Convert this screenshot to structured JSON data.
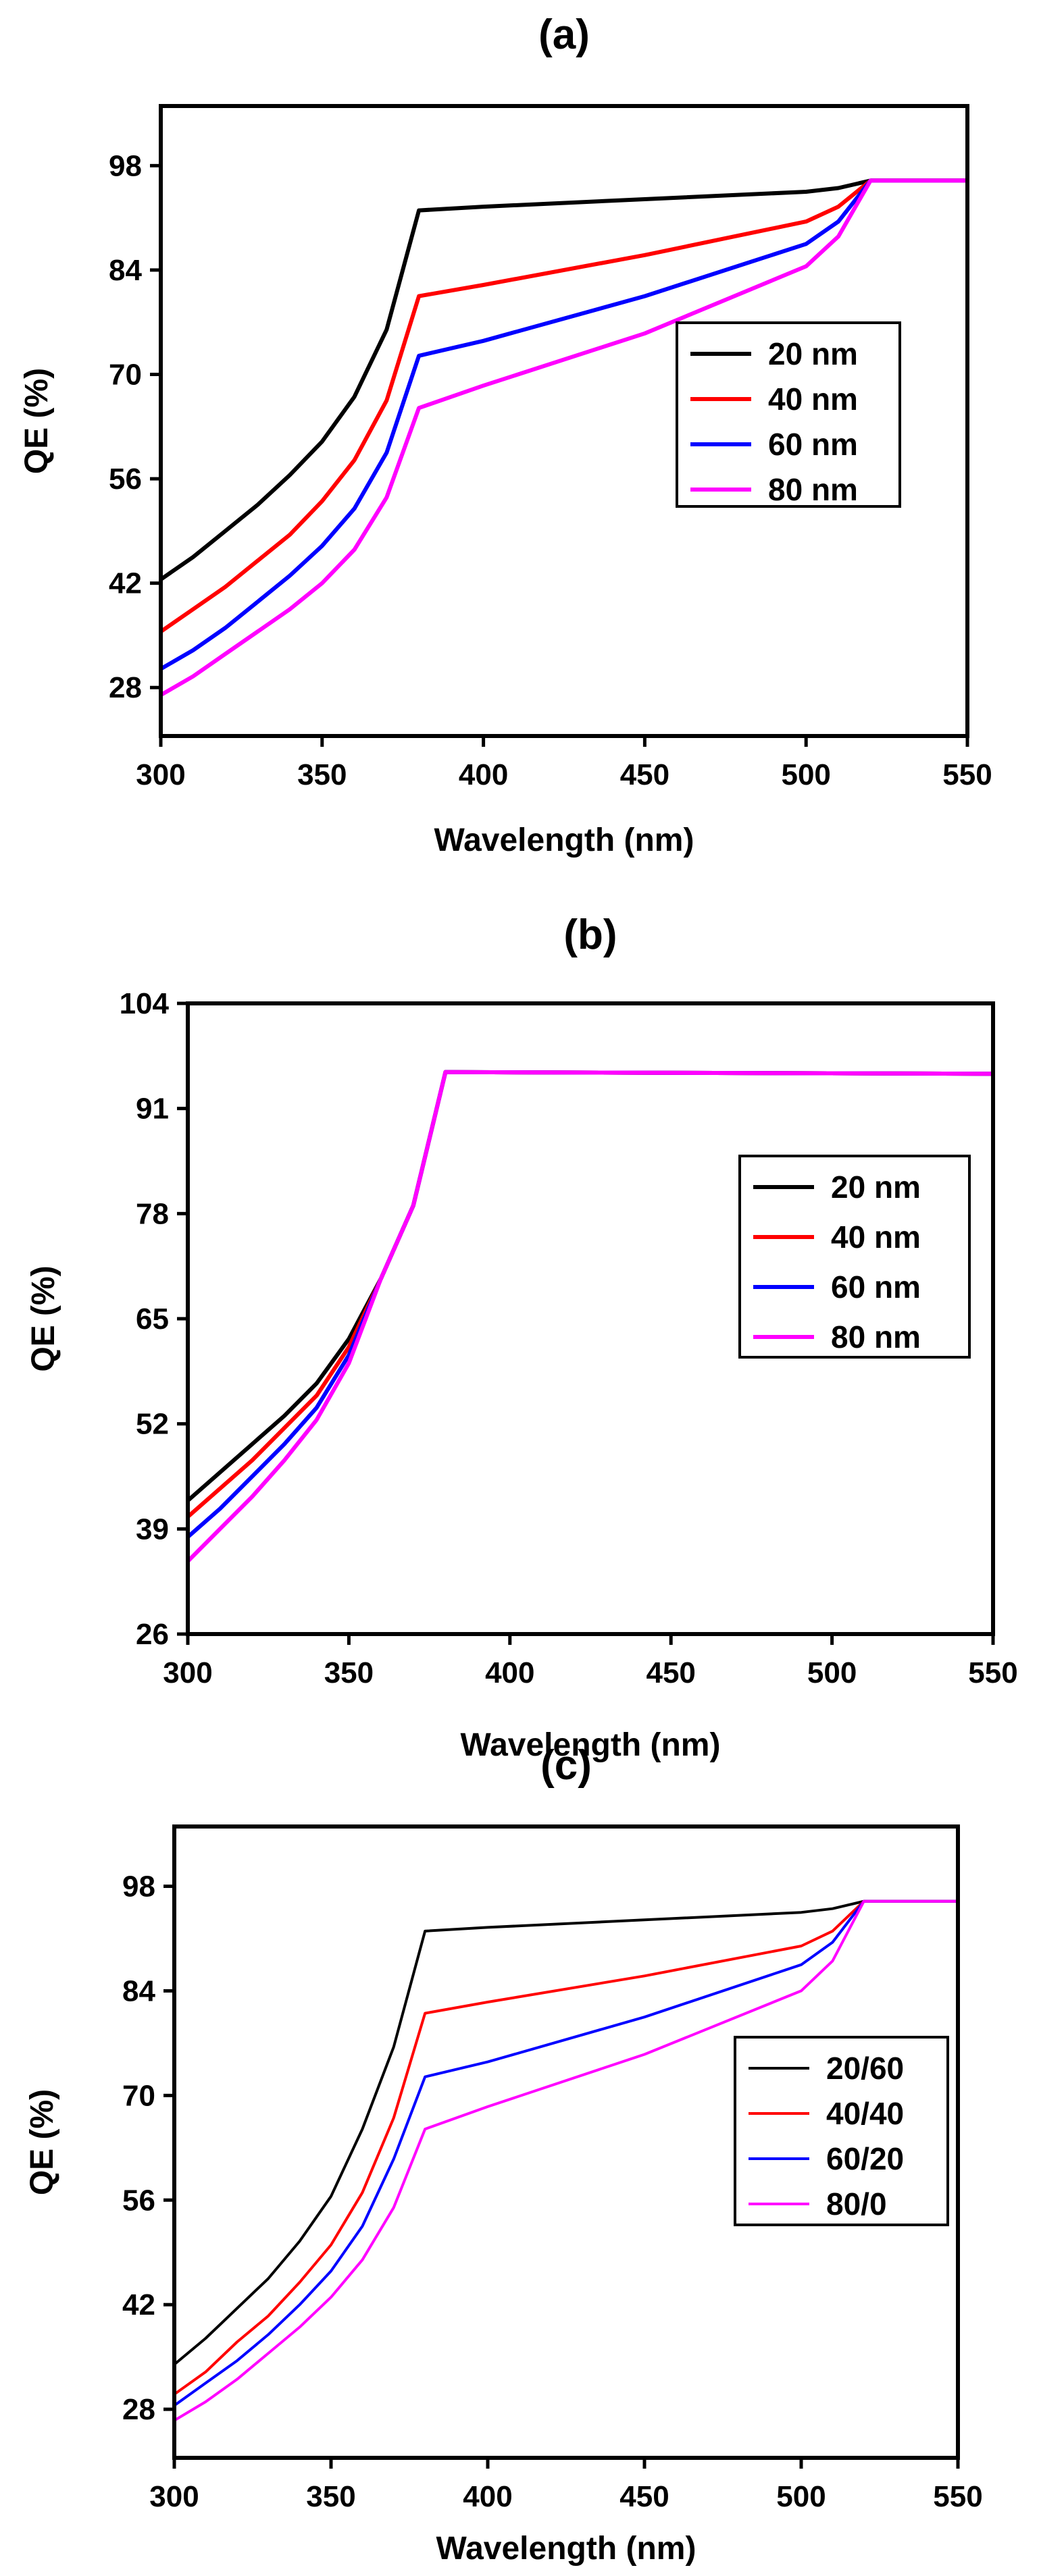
{
  "chart_data": [
    {
      "panel": "a",
      "type": "line",
      "title": "(a)",
      "xlabel": "Wavelength (nm)",
      "ylabel": "QE (%)",
      "xlim": [
        300,
        550
      ],
      "ylim": [
        21.5,
        106
      ],
      "xticks": [
        300,
        350,
        400,
        450,
        500,
        550
      ],
      "xtick_labels": [
        "300",
        "350",
        "400",
        "450",
        "500",
        "550"
      ],
      "yticks": [
        28,
        42,
        56,
        70,
        84,
        98
      ],
      "ytick_labels": [
        "28",
        "42",
        "56",
        "70",
        "84",
        "98"
      ],
      "grid": false,
      "legend_position": "center-right",
      "series": [
        {
          "name": "20 nm",
          "color": "#000000",
          "x": [
            300,
            310,
            320,
            330,
            340,
            350,
            360,
            370,
            380,
            400,
            450,
            500,
            510,
            520,
            550
          ],
          "y": [
            42.5,
            45.5,
            49,
            52.5,
            56.5,
            61,
            67,
            76,
            92,
            92.5,
            93.5,
            94.5,
            95,
            96,
            96
          ]
        },
        {
          "name": "40 nm",
          "color": "#ff0000",
          "x": [
            300,
            310,
            320,
            330,
            340,
            350,
            360,
            370,
            380,
            400,
            450,
            500,
            510,
            520,
            550
          ],
          "y": [
            35.5,
            38.5,
            41.5,
            45,
            48.5,
            53,
            58.5,
            66.5,
            80.5,
            82,
            86,
            90.5,
            92.5,
            96,
            96
          ]
        },
        {
          "name": "60 nm",
          "color": "#0000ff",
          "x": [
            300,
            310,
            320,
            330,
            340,
            350,
            360,
            370,
            380,
            400,
            450,
            500,
            510,
            520,
            550
          ],
          "y": [
            30.5,
            33,
            36,
            39.5,
            43,
            47,
            52,
            59.5,
            72.5,
            74.5,
            80.5,
            87.5,
            90.5,
            96,
            96
          ]
        },
        {
          "name": "80 nm",
          "color": "#ff00ff",
          "x": [
            300,
            310,
            320,
            330,
            340,
            350,
            360,
            370,
            380,
            400,
            450,
            500,
            510,
            520,
            550
          ],
          "y": [
            27,
            29.5,
            32.5,
            35.5,
            38.5,
            42,
            46.5,
            53.5,
            65.5,
            68.5,
            75.5,
            84.5,
            88.5,
            96,
            96
          ]
        }
      ]
    },
    {
      "panel": "b",
      "type": "line",
      "title": "(b)",
      "xlabel": "Wavelength (nm)",
      "ylabel": "QE (%)",
      "xlim": [
        300,
        550
      ],
      "ylim": [
        26,
        104
      ],
      "xticks": [
        300,
        350,
        400,
        450,
        500,
        550
      ],
      "xtick_labels": [
        "300",
        "350",
        "400",
        "450",
        "500",
        "550"
      ],
      "yticks": [
        26,
        39,
        52,
        65,
        78,
        91,
        104
      ],
      "ytick_labels": [
        "26",
        "39",
        "52",
        "65",
        "78",
        "91",
        "104"
      ],
      "grid": false,
      "legend_position": "center-right",
      "series": [
        {
          "name": "20 nm",
          "color": "#000000",
          "x": [
            300,
            310,
            320,
            330,
            340,
            350,
            360,
            370,
            380,
            550
          ],
          "y": [
            42.5,
            46,
            49.5,
            53,
            57,
            62.5,
            70,
            79,
            95.5,
            95.3
          ]
        },
        {
          "name": "40 nm",
          "color": "#ff0000",
          "x": [
            300,
            310,
            320,
            330,
            340,
            350,
            360,
            370,
            380,
            550
          ],
          "y": [
            40.5,
            44,
            47.5,
            51.5,
            55.5,
            61.5,
            70,
            79,
            95.5,
            95.3
          ]
        },
        {
          "name": "60 nm",
          "color": "#0000ff",
          "x": [
            300,
            310,
            320,
            330,
            340,
            350,
            360,
            370,
            380,
            550
          ],
          "y": [
            38,
            41.5,
            45.5,
            49.5,
            54,
            60.5,
            70,
            79,
            95.5,
            95.3
          ]
        },
        {
          "name": "80 nm",
          "color": "#ff00ff",
          "x": [
            300,
            310,
            320,
            330,
            340,
            350,
            360,
            370,
            380,
            550
          ],
          "y": [
            35,
            39,
            43,
            47.5,
            52.5,
            59.5,
            70,
            79,
            95.5,
            95.3
          ]
        }
      ]
    },
    {
      "panel": "c",
      "type": "line",
      "title": "(c)",
      "xlabel": "Wavelength (nm)",
      "ylabel": "QE (%)",
      "xlim": [
        300,
        550
      ],
      "ylim": [
        21.5,
        106
      ],
      "xticks": [
        300,
        350,
        400,
        450,
        500,
        550
      ],
      "xtick_labels": [
        "300",
        "350",
        "400",
        "450",
        "500",
        "550"
      ],
      "yticks": [
        28,
        42,
        56,
        70,
        84,
        98
      ],
      "ytick_labels": [
        "28",
        "42",
        "56",
        "70",
        "84",
        "98"
      ],
      "grid": false,
      "legend_position": "center-right",
      "series": [
        {
          "name": "20/60",
          "color": "#000000",
          "x": [
            300,
            310,
            320,
            330,
            340,
            350,
            360,
            370,
            380,
            400,
            450,
            500,
            510,
            520,
            550
          ],
          "y": [
            34,
            37.5,
            41.5,
            45.5,
            50.5,
            56.5,
            65.5,
            76.5,
            92,
            92.5,
            93.5,
            94.5,
            95,
            96,
            96
          ]
        },
        {
          "name": "40/40",
          "color": "#ff0000",
          "x": [
            300,
            310,
            320,
            330,
            340,
            350,
            360,
            370,
            380,
            400,
            450,
            500,
            510,
            520,
            550
          ],
          "y": [
            30,
            33,
            37,
            40.5,
            45,
            50,
            57,
            67,
            81,
            82.5,
            86,
            90,
            92,
            96,
            96
          ]
        },
        {
          "name": "60/20",
          "color": "#0000ff",
          "x": [
            300,
            310,
            320,
            330,
            340,
            350,
            360,
            370,
            380,
            400,
            450,
            500,
            510,
            520,
            550
          ],
          "y": [
            28.5,
            31.5,
            34.5,
            38,
            42,
            46.5,
            52.5,
            61.5,
            72.5,
            74.5,
            80.5,
            87.5,
            90.5,
            96,
            96
          ]
        },
        {
          "name": "80/0",
          "color": "#ff00ff",
          "x": [
            300,
            310,
            320,
            330,
            340,
            350,
            360,
            370,
            380,
            400,
            450,
            500,
            510,
            520,
            550
          ],
          "y": [
            26.5,
            29,
            32,
            35.5,
            39,
            43,
            48,
            55,
            65.5,
            68.5,
            75.5,
            84,
            88,
            96,
            96
          ]
        }
      ]
    }
  ]
}
